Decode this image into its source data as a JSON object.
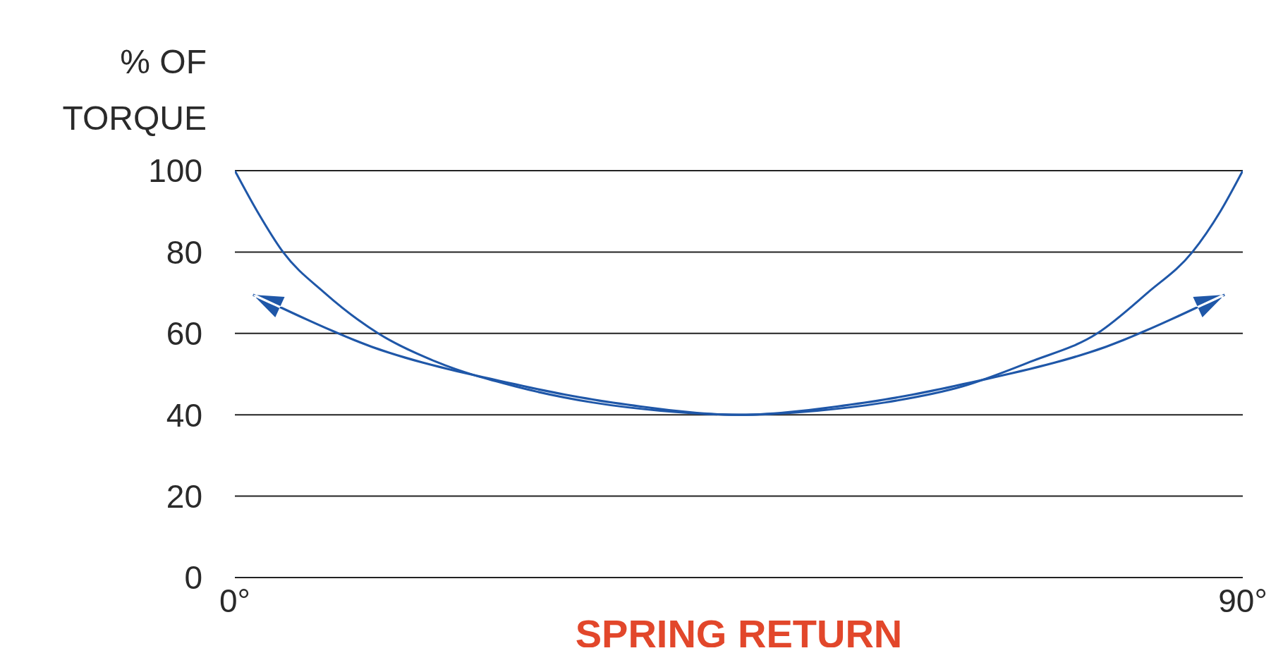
{
  "chart_data": {
    "type": "line",
    "xlabel": "SPRING RETURN",
    "ylabel": "% OF TORQUE",
    "x": [
      0,
      2,
      4.3,
      8,
      12.8,
      18,
      25,
      32,
      38,
      45,
      52,
      58,
      65,
      71,
      77,
      81.5,
      85.5,
      88,
      90
    ],
    "series": [
      {
        "color": "#1f57a8",
        "values": [
          100,
          90,
          80,
          70,
          60,
          53,
          47,
          43,
          41,
          40,
          41,
          43,
          47,
          53,
          60,
          70,
          80,
          90,
          100
        ]
      }
    ],
    "xlim": [
      0,
      90
    ],
    "xticks": [
      {
        "value": 0,
        "label": "0°"
      },
      {
        "value": 90,
        "label": "90°"
      }
    ],
    "ylim": [
      0,
      100
    ],
    "yticks": [
      0,
      20,
      40,
      60,
      80,
      100
    ],
    "grid": "y",
    "marker": "none",
    "line_style": "solid"
  }
}
